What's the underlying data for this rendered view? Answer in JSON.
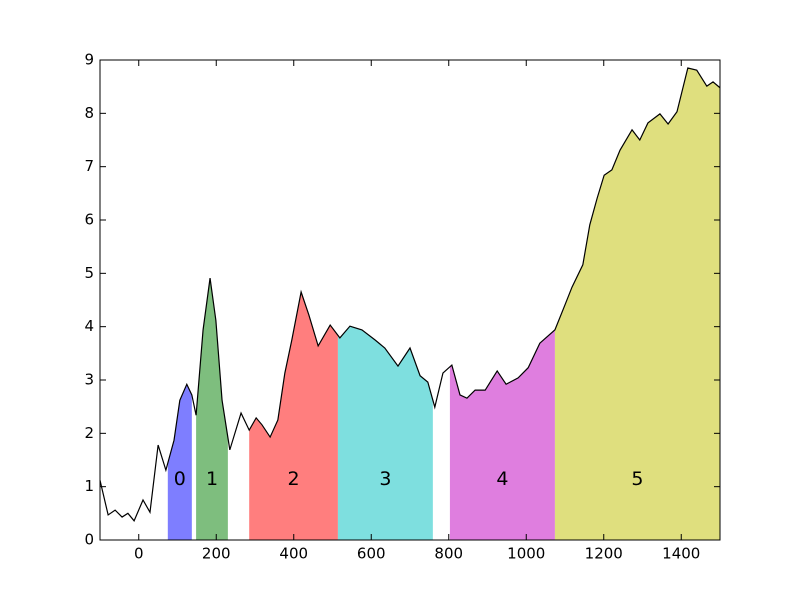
{
  "chart_data": {
    "type": "line",
    "x": [
      -100,
      -79,
      -61,
      -43,
      -28,
      -12,
      11,
      29,
      50,
      70,
      91,
      106,
      124,
      137,
      148,
      166,
      184,
      199,
      215,
      235,
      264,
      285,
      303,
      318,
      339,
      359,
      377,
      395,
      419,
      439,
      463,
      494,
      519,
      545,
      576,
      610,
      635,
      669,
      700,
      726,
      746,
      764,
      785,
      808,
      829,
      847,
      868,
      894,
      925,
      948,
      979,
      1005,
      1035,
      1074,
      1100,
      1118,
      1146,
      1164,
      1183,
      1201,
      1221,
      1242,
      1273,
      1293,
      1314,
      1345,
      1366,
      1389,
      1417,
      1440,
      1466,
      1482,
      1500
    ],
    "y": [
      1.12,
      0.47,
      0.56,
      0.43,
      0.5,
      0.36,
      0.75,
      0.52,
      1.78,
      1.31,
      1.87,
      2.62,
      2.92,
      2.72,
      2.34,
      3.94,
      4.91,
      4.12,
      2.62,
      1.69,
      2.38,
      2.06,
      2.29,
      2.16,
      1.93,
      2.25,
      3.13,
      3.75,
      4.65,
      4.22,
      3.64,
      4.03,
      3.79,
      4.01,
      3.94,
      3.75,
      3.6,
      3.26,
      3.6,
      3.08,
      2.96,
      2.49,
      3.13,
      3.28,
      2.72,
      2.66,
      2.81,
      2.81,
      3.17,
      2.92,
      3.04,
      3.23,
      3.69,
      3.94,
      4.41,
      4.74,
      5.16,
      5.91,
      6.41,
      6.84,
      6.94,
      7.31,
      7.69,
      7.5,
      7.82,
      7.99,
      7.8,
      8.03,
      8.85,
      8.81,
      8.51,
      8.59,
      8.48
    ],
    "color": "#000000",
    "regions": [
      {
        "label": "0",
        "start": 75,
        "end": 137,
        "color": "#7777ff"
      },
      {
        "label": "1",
        "start": 148,
        "end": 230,
        "color": "#77bb77"
      },
      {
        "label": "2",
        "start": 285,
        "end": 514,
        "color": "#ff7777"
      },
      {
        "label": "3",
        "start": 514,
        "end": 759,
        "color": "#77dddd"
      },
      {
        "label": "4",
        "start": 803,
        "end": 1074,
        "color": "#dd77dd"
      },
      {
        "label": "5",
        "start": 1074,
        "end": 1500,
        "color": "#dddd77"
      }
    ],
    "xlim": [
      -100,
      1500
    ],
    "xticks": [
      0,
      200,
      400,
      600,
      800,
      1000,
      1200,
      1400
    ],
    "ylim": [
      0,
      9
    ],
    "yticks": [
      0,
      1,
      2,
      3,
      4,
      5,
      6,
      7,
      8,
      9
    ]
  }
}
